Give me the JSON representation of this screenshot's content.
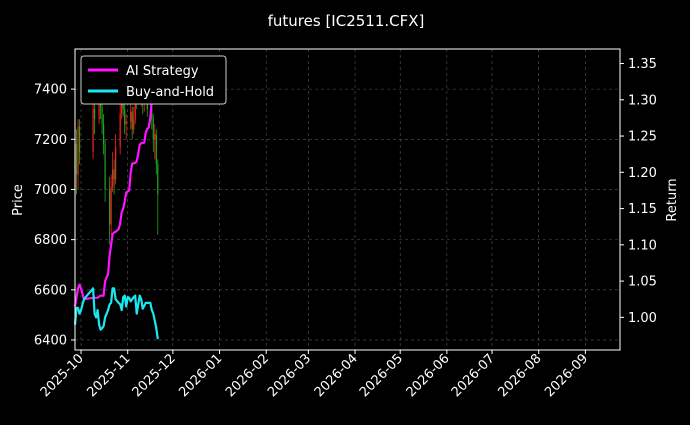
{
  "chart_data": {
    "type": "line",
    "title": "futures [IC2511.CFX]",
    "ylabel_left": "Price",
    "ylabel_right": "Return",
    "yleft_range": [
      6360,
      7560
    ],
    "yright_range": [
      0.955,
      1.37
    ],
    "yleft_ticks": [
      6400,
      6600,
      6800,
      7000,
      7200,
      7400
    ],
    "yright_ticks": [
      1.0,
      1.05,
      1.1,
      1.15,
      1.2,
      1.25,
      1.3,
      1.35
    ],
    "yright_tick_labels": [
      "1.00",
      "1.05",
      "1.10",
      "1.15",
      "1.20",
      "1.25",
      "1.30",
      "1.35"
    ],
    "x_range": [
      "2025-09-27",
      "2026-09-24"
    ],
    "x_ticks": [
      "2025-10-01",
      "2025-11-01",
      "2025-12-01",
      "2026-01-01",
      "2026-02-01",
      "2026-03-01",
      "2026-04-01",
      "2026-05-01",
      "2026-06-01",
      "2026-07-01",
      "2026-08-01",
      "2026-09-01"
    ],
    "x_tick_labels": [
      "2025-10",
      "2025-11",
      "2025-12",
      "2026-01",
      "2026-02",
      "2026-03",
      "2026-04",
      "2026-05",
      "2026-06",
      "2026-07",
      "2026-08",
      "2026-09"
    ],
    "grid": true,
    "legend_position": "top-left",
    "candles": [
      {
        "date": "2025-09-27",
        "open": 7000,
        "close": 7180,
        "high": 7260,
        "low": 6960
      },
      {
        "date": "2025-09-28",
        "open": 7180,
        "close": 7060,
        "high": 7240,
        "low": 6980
      },
      {
        "date": "2025-09-29",
        "open": 7060,
        "close": 7250,
        "high": 7280,
        "low": 7000
      },
      {
        "date": "2025-09-30",
        "open": 7250,
        "close": 7150,
        "high": 7280,
        "low": 7100
      },
      {
        "date": "2025-10-09",
        "open": 7150,
        "close": 7320,
        "high": 7370,
        "low": 7120
      },
      {
        "date": "2025-10-10",
        "open": 7320,
        "close": 7280,
        "high": 7400,
        "low": 7220
      },
      {
        "date": "2025-10-13",
        "open": 7280,
        "close": 7360,
        "high": 7420,
        "low": 7260
      },
      {
        "date": "2025-10-14",
        "open": 7360,
        "close": 7330,
        "high": 7420,
        "low": 7280
      },
      {
        "date": "2025-10-15",
        "open": 7330,
        "close": 7260,
        "high": 7350,
        "low": 7220
      },
      {
        "date": "2025-10-16",
        "open": 7260,
        "close": 7180,
        "high": 7300,
        "low": 7140
      },
      {
        "date": "2025-10-17",
        "open": 7180,
        "close": 7000,
        "high": 7200,
        "low": 6950
      },
      {
        "date": "2025-10-20",
        "open": 7000,
        "close": 6860,
        "high": 7050,
        "low": 6780
      },
      {
        "date": "2025-10-21",
        "open": 6860,
        "close": 7010,
        "high": 7060,
        "low": 6820
      },
      {
        "date": "2025-10-22",
        "open": 7010,
        "close": 7080,
        "high": 7150,
        "low": 6990
      },
      {
        "date": "2025-10-23",
        "open": 7080,
        "close": 7040,
        "high": 7120,
        "low": 6980
      },
      {
        "date": "2025-10-24",
        "open": 7040,
        "close": 7170,
        "high": 7220,
        "low": 7020
      },
      {
        "date": "2025-10-27",
        "open": 7170,
        "close": 7300,
        "high": 7340,
        "low": 7140
      },
      {
        "date": "2025-10-28",
        "open": 7300,
        "close": 7360,
        "high": 7400,
        "low": 7280
      },
      {
        "date": "2025-10-29",
        "open": 7360,
        "close": 7320,
        "high": 7410,
        "low": 7290
      },
      {
        "date": "2025-10-30",
        "open": 7320,
        "close": 7260,
        "high": 7360,
        "low": 7220
      },
      {
        "date": "2025-10-31",
        "open": 7260,
        "close": 7270,
        "high": 7300,
        "low": 7200
      },
      {
        "date": "2025-11-03",
        "open": 7270,
        "close": 7310,
        "high": 7350,
        "low": 7240
      },
      {
        "date": "2025-11-04",
        "open": 7310,
        "close": 7240,
        "high": 7330,
        "low": 7200
      },
      {
        "date": "2025-11-05",
        "open": 7240,
        "close": 7280,
        "high": 7330,
        "low": 7220
      },
      {
        "date": "2025-11-06",
        "open": 7280,
        "close": 7380,
        "high": 7420,
        "low": 7260
      },
      {
        "date": "2025-11-07",
        "open": 7380,
        "close": 7360,
        "high": 7410,
        "low": 7320
      },
      {
        "date": "2025-11-10",
        "open": 7360,
        "close": 7390,
        "high": 7420,
        "low": 7330
      },
      {
        "date": "2025-11-11",
        "open": 7390,
        "close": 7350,
        "high": 7410,
        "low": 7300
      },
      {
        "date": "2025-11-12",
        "open": 7350,
        "close": 7360,
        "high": 7400,
        "low": 7310
      },
      {
        "date": "2025-11-13",
        "open": 7360,
        "close": 7400,
        "high": 7430,
        "low": 7340
      },
      {
        "date": "2025-11-14",
        "open": 7400,
        "close": 7320,
        "high": 7420,
        "low": 7290
      },
      {
        "date": "2025-11-17",
        "open": 7320,
        "close": 7280,
        "high": 7350,
        "low": 7240
      },
      {
        "date": "2025-11-18",
        "open": 7280,
        "close": 7200,
        "high": 7300,
        "low": 7150
      },
      {
        "date": "2025-11-19",
        "open": 7200,
        "close": 7220,
        "high": 7260,
        "low": 7120
      },
      {
        "date": "2025-11-20",
        "open": 7220,
        "close": 7100,
        "high": 7240,
        "low": 7060
      },
      {
        "date": "2025-11-21",
        "open": 7100,
        "close": 6980,
        "high": 7120,
        "low": 6820
      }
    ],
    "candle_colors": {
      "up": "#ff2020",
      "down": "#1fa81f"
    },
    "series": [
      {
        "name": "AI Strategy",
        "color": "#ff14ff",
        "axis": "right",
        "points": [
          [
            "2025-09-27",
            1.015
          ],
          [
            "2025-09-29",
            1.04
          ],
          [
            "2025-09-30",
            1.045
          ],
          [
            "2025-10-01",
            1.04
          ],
          [
            "2025-10-03",
            1.025
          ],
          [
            "2025-10-09",
            1.027
          ],
          [
            "2025-10-12",
            1.027
          ],
          [
            "2025-10-14",
            1.03
          ],
          [
            "2025-10-16",
            1.03
          ],
          [
            "2025-10-17",
            1.05
          ],
          [
            "2025-10-19",
            1.06
          ],
          [
            "2025-10-20",
            1.085
          ],
          [
            "2025-10-21",
            1.1
          ],
          [
            "2025-10-22",
            1.115
          ],
          [
            "2025-10-23",
            1.117
          ],
          [
            "2025-10-24",
            1.118
          ],
          [
            "2025-10-26",
            1.122
          ],
          [
            "2025-10-27",
            1.13
          ],
          [
            "2025-10-28",
            1.145
          ],
          [
            "2025-10-29",
            1.15
          ],
          [
            "2025-10-30",
            1.16
          ],
          [
            "2025-10-31",
            1.172
          ],
          [
            "2025-11-02",
            1.175
          ],
          [
            "2025-11-03",
            1.2
          ],
          [
            "2025-11-04",
            1.212
          ],
          [
            "2025-11-06",
            1.213
          ],
          [
            "2025-11-07",
            1.215
          ],
          [
            "2025-11-08",
            1.225
          ],
          [
            "2025-11-09",
            1.238
          ],
          [
            "2025-11-10",
            1.24
          ],
          [
            "2025-11-12",
            1.241
          ],
          [
            "2025-11-13",
            1.255
          ],
          [
            "2025-11-14",
            1.26
          ],
          [
            "2025-11-15",
            1.262
          ],
          [
            "2025-11-16",
            1.275
          ],
          [
            "2025-11-17",
            1.3
          ],
          [
            "2025-11-18",
            1.318
          ],
          [
            "2025-11-19",
            1.33
          ],
          [
            "2025-11-20",
            1.335
          ],
          [
            "2025-11-21",
            1.34
          ]
        ]
      },
      {
        "name": "Buy-and-Hold",
        "color": "#19e8f0",
        "axis": "right",
        "points": [
          [
            "2025-09-27",
            0.99
          ],
          [
            "2025-09-28",
            1.013
          ],
          [
            "2025-09-29",
            1.013
          ],
          [
            "2025-09-30",
            1.005
          ],
          [
            "2025-10-01",
            1.01
          ],
          [
            "2025-10-02",
            1.018
          ],
          [
            "2025-10-03",
            1.025
          ],
          [
            "2025-10-05",
            1.03
          ],
          [
            "2025-10-07",
            1.035
          ],
          [
            "2025-10-09",
            1.04
          ],
          [
            "2025-10-10",
            1.005
          ],
          [
            "2025-10-11",
            1.0
          ],
          [
            "2025-10-12",
            1.01
          ],
          [
            "2025-10-13",
            0.99
          ],
          [
            "2025-10-14",
            0.983
          ],
          [
            "2025-10-15",
            0.985
          ],
          [
            "2025-10-16",
            0.988
          ],
          [
            "2025-10-17",
            1.0
          ],
          [
            "2025-10-18",
            1.005
          ],
          [
            "2025-10-19",
            1.01
          ],
          [
            "2025-10-20",
            1.018
          ],
          [
            "2025-10-21",
            1.02
          ],
          [
            "2025-10-22",
            1.04
          ],
          [
            "2025-10-23",
            1.04
          ],
          [
            "2025-10-24",
            1.025
          ],
          [
            "2025-10-26",
            1.02
          ],
          [
            "2025-10-27",
            1.018
          ],
          [
            "2025-10-28",
            1.01
          ],
          [
            "2025-10-29",
            1.028
          ],
          [
            "2025-10-30",
            1.03
          ],
          [
            "2025-10-31",
            1.015
          ],
          [
            "2025-11-01",
            1.028
          ],
          [
            "2025-11-02",
            1.027
          ],
          [
            "2025-11-03",
            1.022
          ],
          [
            "2025-11-05",
            1.028
          ],
          [
            "2025-11-06",
            1.03
          ],
          [
            "2025-11-07",
            1.005
          ],
          [
            "2025-11-09",
            1.03
          ],
          [
            "2025-11-10",
            1.025
          ],
          [
            "2025-11-11",
            1.012
          ],
          [
            "2025-11-13",
            1.02
          ],
          [
            "2025-11-14",
            1.02
          ],
          [
            "2025-11-15",
            1.02
          ],
          [
            "2025-11-16",
            1.02
          ],
          [
            "2025-11-17",
            1.01
          ],
          [
            "2025-11-18",
            1.005
          ],
          [
            "2025-11-20",
            0.985
          ],
          [
            "2025-11-21",
            0.97
          ]
        ]
      }
    ],
    "legend_entries": [
      "AI Strategy",
      "Buy-and-Hold"
    ]
  }
}
